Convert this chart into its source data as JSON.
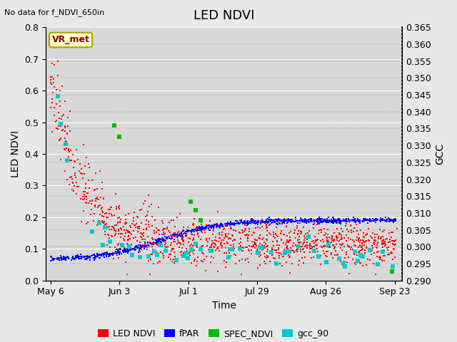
{
  "title": "LED NDVI",
  "top_left_text": "No data for f_NDVI_650in",
  "annotation_box": "VR_met",
  "xlabel": "Time",
  "ylabel_left": "LED NDVI",
  "ylabel_right": "GCC",
  "ylim_left": [
    0.0,
    0.8
  ],
  "ylim_right": [
    0.29,
    0.365
  ],
  "yticks_left": [
    0.0,
    0.1,
    0.2,
    0.3,
    0.4,
    0.5,
    0.6,
    0.7,
    0.8
  ],
  "yticks_right": [
    0.29,
    0.295,
    0.3,
    0.305,
    0.31,
    0.315,
    0.32,
    0.325,
    0.33,
    0.335,
    0.34,
    0.345,
    0.35,
    0.355,
    0.36,
    0.365
  ],
  "xtick_positions": [
    0,
    28,
    56,
    84,
    112,
    140
  ],
  "xtick_labels": [
    "May 6",
    "Jun 3",
    "Jul 1",
    "Jul 29",
    "Aug 26",
    "Sep 23"
  ],
  "n_days": 141,
  "bg_color": "#e8e8e8",
  "plot_bg_color": "#d8d8d8",
  "grid_color": "#ffffff",
  "colors": {
    "LED_NDVI": "#ff0000",
    "fPAR": "#0000ff",
    "SPEC_NDVI": "#00bb00",
    "gcc_90": "#00cccc"
  },
  "legend_labels": [
    "LED NDVI",
    "fPAR",
    "SPEC_NDVI",
    "gcc_90"
  ],
  "title_fontsize": 13,
  "axis_fontsize": 10,
  "tick_fontsize": 9
}
